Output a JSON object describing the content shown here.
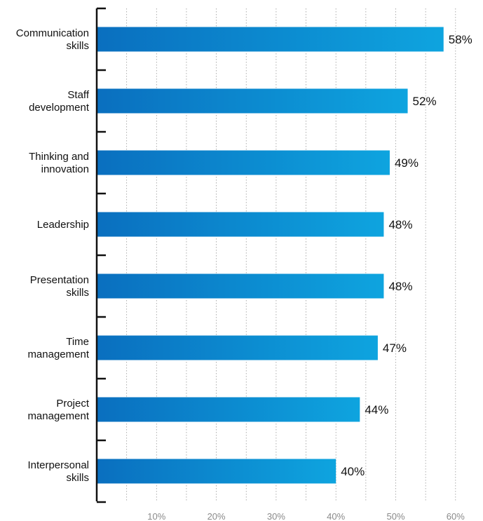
{
  "chart_data": {
    "type": "bar",
    "orientation": "horizontal",
    "categories": [
      [
        "Communication",
        "skills"
      ],
      [
        "Staff",
        "development"
      ],
      [
        "Thinking and",
        "innovation"
      ],
      [
        "Leadership"
      ],
      [
        "Presentation",
        "skills"
      ],
      [
        "Time",
        "management"
      ],
      [
        "Project",
        "management"
      ],
      [
        "Interpersonal",
        "skills"
      ]
    ],
    "values": [
      58,
      52,
      49,
      48,
      48,
      47,
      44,
      40
    ],
    "value_labels": [
      "58%",
      "52%",
      "49%",
      "48%",
      "48%",
      "47%",
      "44%",
      "40%"
    ],
    "x_ticks": [
      {
        "value": 10,
        "label": "10%"
      },
      {
        "value": 20,
        "label": "20%"
      },
      {
        "value": 30,
        "label": "30%"
      },
      {
        "value": 40,
        "label": "40%"
      },
      {
        "value": 50,
        "label": "50%"
      },
      {
        "value": 60,
        "label": "60%"
      }
    ],
    "minor_gridlines": [
      5,
      15,
      25,
      35,
      45,
      55
    ],
    "xlim": [
      0,
      61
    ],
    "grid": "vertical dotted",
    "legend": "none",
    "title": "",
    "xlabel": "",
    "ylabel": "",
    "colors": {
      "bar_gradient_start": "#0a6fbf",
      "bar_gradient_end": "#0ea4df",
      "axis": "#111111",
      "grid": "#9a9a9a",
      "tick_text": "#8a8a8a"
    }
  }
}
